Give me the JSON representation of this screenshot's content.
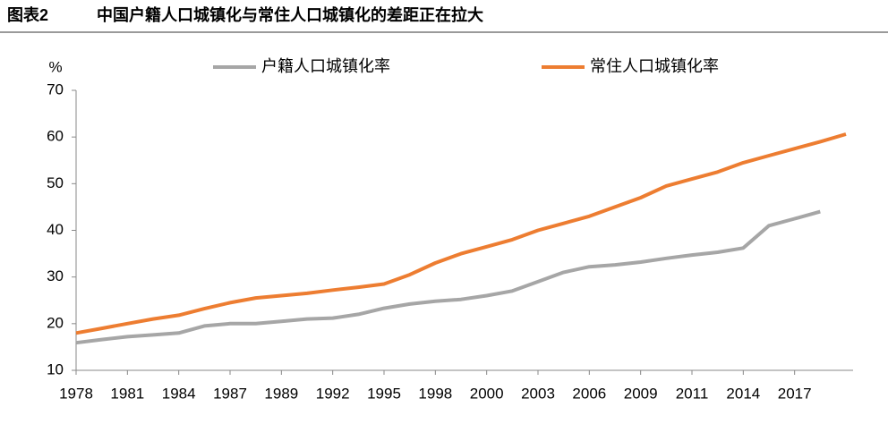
{
  "chart_data": {
    "type": "line",
    "title_label": "图表2",
    "title": "中国户籍人口城镇化与常住人口城镇化的差距正在拉大",
    "y_unit": "%",
    "categories": [
      "1978",
      null,
      "1981",
      null,
      "1984",
      null,
      "1987",
      null,
      "1989",
      null,
      "1992",
      null,
      "1995",
      null,
      "1998",
      null,
      "2000",
      null,
      "2003",
      null,
      "2006",
      null,
      "2009",
      null,
      "2011",
      null,
      "2014",
      null,
      "2017",
      null,
      null
    ],
    "series": [
      {
        "name": "户籍人口城镇化率",
        "color": "#a6a6a6",
        "values": [
          15.9,
          16.6,
          17.2,
          17.6,
          18,
          19.5,
          20,
          20,
          20.5,
          21,
          21.2,
          22,
          23.3,
          24.2,
          24.8,
          25.2,
          26,
          27,
          29,
          31,
          32.2,
          32.6,
          33.2,
          34,
          34.7,
          35.3,
          36.2,
          41,
          42.5,
          44,
          null
        ]
      },
      {
        "name": "常住人口城镇化率",
        "color": "#ed7d31",
        "values": [
          18,
          19,
          20,
          21,
          21.8,
          23.2,
          24.5,
          25.5,
          26,
          26.5,
          27.2,
          27.8,
          28.5,
          30.5,
          33,
          35,
          36.5,
          38,
          40,
          41.5,
          43,
          45,
          47,
          49.5,
          51,
          52.5,
          54.5,
          56,
          57.5,
          59,
          60.6
        ]
      }
    ],
    "ylim": [
      10,
      70
    ],
    "yticks": [
      10,
      20,
      30,
      40,
      50,
      60,
      70
    ],
    "grid": false
  }
}
